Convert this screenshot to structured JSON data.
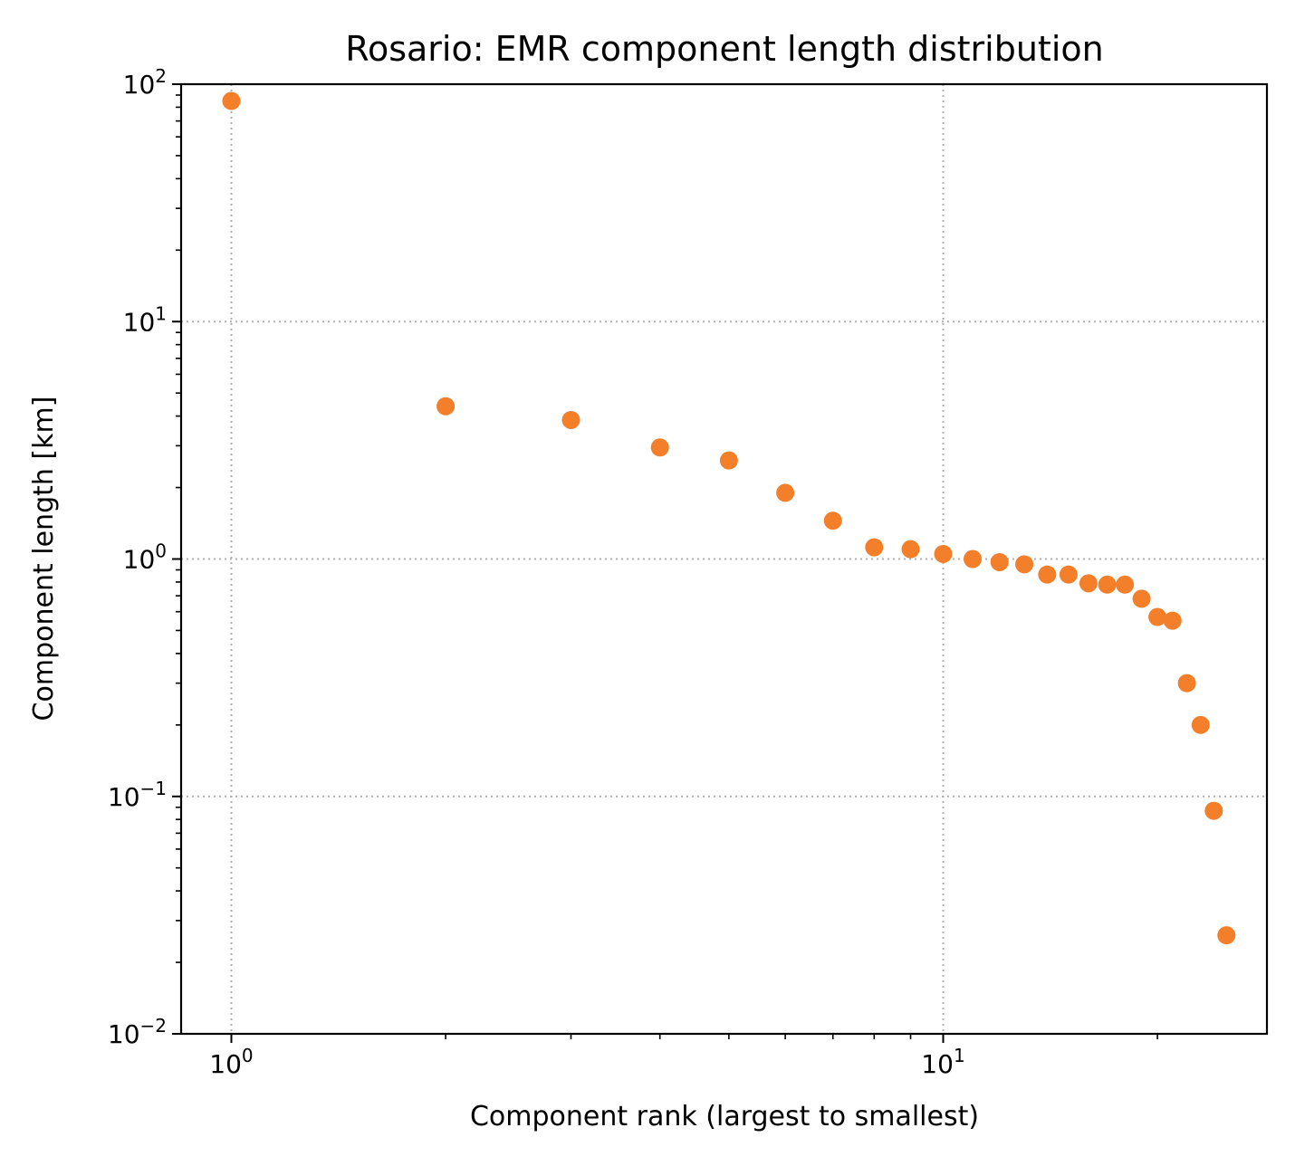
{
  "chart_data": {
    "type": "scatter",
    "title": "Rosario: EMR component length distribution",
    "xlabel": "Component rank (largest to smallest)",
    "ylabel": "Component length [km]",
    "x_scale": "log",
    "y_scale": "log",
    "xlim": [
      0.85,
      28.5
    ],
    "ylim": [
      0.01,
      100
    ],
    "grid": true,
    "grid_style": "dotted",
    "marker_color": "#f47f2a",
    "x_ticks": [
      {
        "value": 1,
        "base": "10",
        "exp": "0"
      },
      {
        "value": 10,
        "base": "10",
        "exp": "1"
      }
    ],
    "y_ticks": [
      {
        "value": 0.01,
        "base": "10",
        "exp": "−2"
      },
      {
        "value": 0.1,
        "base": "10",
        "exp": "−1"
      },
      {
        "value": 1,
        "base": "10",
        "exp": "0"
      },
      {
        "value": 10,
        "base": "10",
        "exp": "1"
      },
      {
        "value": 100,
        "base": "10",
        "exp": "2"
      }
    ],
    "series": [
      {
        "points": [
          {
            "x": 1,
            "y": 85
          },
          {
            "x": 2,
            "y": 4.4
          },
          {
            "x": 3,
            "y": 3.85
          },
          {
            "x": 4,
            "y": 2.95
          },
          {
            "x": 5,
            "y": 2.6
          },
          {
            "x": 6,
            "y": 1.9
          },
          {
            "x": 7,
            "y": 1.45
          },
          {
            "x": 8,
            "y": 1.12
          },
          {
            "x": 9,
            "y": 1.1
          },
          {
            "x": 10,
            "y": 1.05
          },
          {
            "x": 11,
            "y": 1.0
          },
          {
            "x": 12,
            "y": 0.97
          },
          {
            "x": 13,
            "y": 0.95
          },
          {
            "x": 14,
            "y": 0.86
          },
          {
            "x": 15,
            "y": 0.86
          },
          {
            "x": 16,
            "y": 0.79
          },
          {
            "x": 17,
            "y": 0.78
          },
          {
            "x": 18,
            "y": 0.78
          },
          {
            "x": 19,
            "y": 0.68
          },
          {
            "x": 20,
            "y": 0.57
          },
          {
            "x": 21,
            "y": 0.55
          },
          {
            "x": 22,
            "y": 0.3
          },
          {
            "x": 23,
            "y": 0.2
          },
          {
            "x": 24,
            "y": 0.087
          },
          {
            "x": 25,
            "y": 0.026
          }
        ]
      }
    ]
  }
}
